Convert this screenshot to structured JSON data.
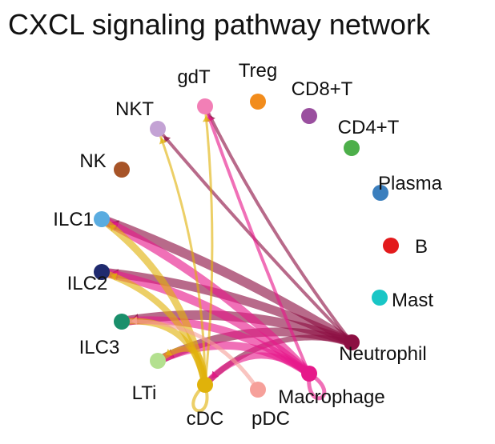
{
  "title": "CXCL signaling pathway network",
  "nodes": [
    {
      "id": "gdT",
      "label": "gdT",
      "color": "#f27fb6"
    },
    {
      "id": "Treg",
      "label": "Treg",
      "color": "#f28c1c"
    },
    {
      "id": "CD8+T",
      "label": "CD8+T",
      "color": "#9a4f9f"
    },
    {
      "id": "NKT",
      "label": "NKT",
      "color": "#c3a2d4"
    },
    {
      "id": "CD4+T",
      "label": "CD4+T",
      "color": "#4daf4a"
    },
    {
      "id": "NK",
      "label": "NK",
      "color": "#a75428"
    },
    {
      "id": "Plasma",
      "label": "Plasma",
      "color": "#3b7fbe"
    },
    {
      "id": "ILC1",
      "label": "ILC1",
      "color": "#5aace0"
    },
    {
      "id": "B",
      "label": "B",
      "color": "#e31a1c"
    },
    {
      "id": "ILC2",
      "label": "ILC2",
      "color": "#1f2a6e"
    },
    {
      "id": "Mast",
      "label": "Mast",
      "color": "#19c6c6"
    },
    {
      "id": "ILC3",
      "label": "ILC3",
      "color": "#1a8f6b"
    },
    {
      "id": "Neutrophil",
      "label": "Neutrophil",
      "color": "#8c0f42"
    },
    {
      "id": "LTi",
      "label": "LTi",
      "color": "#b3e08f"
    },
    {
      "id": "Macrophage",
      "label": "Macrophage",
      "color": "#e6198a"
    },
    {
      "id": "cDC",
      "label": "cDC",
      "color": "#e0b20a"
    },
    {
      "id": "pDC",
      "label": "pDC",
      "color": "#f6a09a"
    }
  ],
  "edges": [
    {
      "source": "Neutrophil",
      "target": "ILC1",
      "weight": 12,
      "color": "#8c0f42"
    },
    {
      "source": "Neutrophil",
      "target": "ILC2",
      "weight": 11,
      "color": "#8c0f42"
    },
    {
      "source": "Neutrophil",
      "target": "ILC3",
      "weight": 12,
      "color": "#8c0f42"
    },
    {
      "source": "Neutrophil",
      "target": "LTi",
      "weight": 11,
      "color": "#8c0f42"
    },
    {
      "source": "Neutrophil",
      "target": "NKT",
      "weight": 4,
      "color": "#8c0f42"
    },
    {
      "source": "Neutrophil",
      "target": "gdT",
      "weight": 4,
      "color": "#8c0f42"
    },
    {
      "source": "Neutrophil",
      "target": "cDC",
      "weight": 7,
      "color": "#8c0f42"
    },
    {
      "source": "Macrophage",
      "target": "ILC1",
      "weight": 11,
      "color": "#e6198a"
    },
    {
      "source": "Macrophage",
      "target": "ILC2",
      "weight": 11,
      "color": "#e6198a"
    },
    {
      "source": "Macrophage",
      "target": "ILC3",
      "weight": 10,
      "color": "#e6198a"
    },
    {
      "source": "Macrophage",
      "target": "LTi",
      "weight": 10,
      "color": "#e6198a"
    },
    {
      "source": "Macrophage",
      "target": "gdT",
      "weight": 4,
      "color": "#e6198a"
    },
    {
      "source": "Macrophage",
      "target": "cDC",
      "weight": 8,
      "color": "#e6198a"
    },
    {
      "source": "Macrophage",
      "target": "Macrophage",
      "weight": 5,
      "color": "#e6198a"
    },
    {
      "source": "cDC",
      "target": "ILC1",
      "weight": 9,
      "color": "#e0b20a"
    },
    {
      "source": "cDC",
      "target": "ILC2",
      "weight": 8,
      "color": "#e0b20a"
    },
    {
      "source": "cDC",
      "target": "ILC3",
      "weight": 8,
      "color": "#e0b20a"
    },
    {
      "source": "cDC",
      "target": "LTi",
      "weight": 7,
      "color": "#e0b20a"
    },
    {
      "source": "cDC",
      "target": "NKT",
      "weight": 3,
      "color": "#e0b20a"
    },
    {
      "source": "cDC",
      "target": "gdT",
      "weight": 3,
      "color": "#e0b20a"
    },
    {
      "source": "cDC",
      "target": "cDC",
      "weight": 4,
      "color": "#e0b20a"
    },
    {
      "source": "pDC",
      "target": "ILC3",
      "weight": 5,
      "color": "#f6a09a"
    }
  ]
}
